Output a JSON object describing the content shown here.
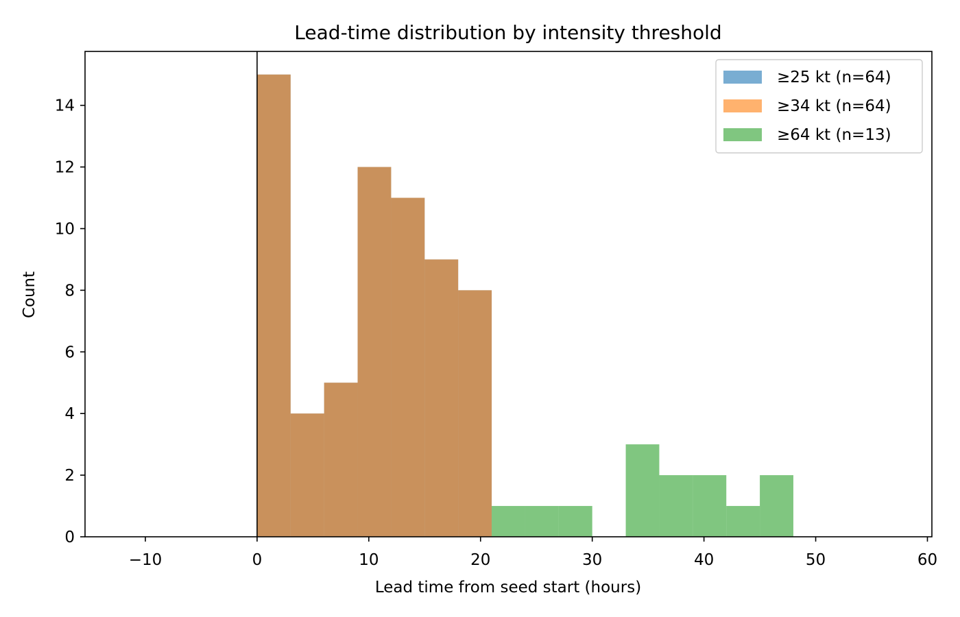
{
  "chart_data": {
    "type": "bar",
    "title": "Lead-time distribution by intensity threshold",
    "xlabel": "Lead time from seed start (hours)",
    "ylabel": "Count",
    "xlim": [
      -15.4,
      60.4
    ],
    "ylim": [
      0,
      15.75
    ],
    "x_ticks": [
      "−10",
      "0",
      "10",
      "20",
      "30",
      "40",
      "50",
      "60"
    ],
    "x_tick_values": [
      -10,
      0,
      10,
      20,
      30,
      40,
      50,
      60
    ],
    "y_ticks": [
      "0",
      "2",
      "4",
      "6",
      "8",
      "10",
      "12",
      "14"
    ],
    "y_tick_values": [
      0,
      2,
      4,
      6,
      8,
      10,
      12,
      14
    ],
    "bin_edges": [
      0,
      3,
      6,
      9,
      12,
      15,
      18,
      21,
      24,
      27,
      30,
      33,
      36,
      39,
      42,
      45,
      48
    ],
    "grid": false,
    "legend_position": "upper right",
    "reference_line_x": 0,
    "series": [
      {
        "name": "≥25 kt (n=64)",
        "color": "#1f77b4",
        "alpha": 0.6,
        "values": [
          15,
          4,
          5,
          12,
          11,
          9,
          8,
          0,
          0,
          0,
          0,
          0,
          0,
          0,
          0,
          0
        ]
      },
      {
        "name": "≥34 kt (n=64)",
        "color": "#ff7f0e",
        "alpha": 0.6,
        "values": [
          15,
          4,
          5,
          12,
          11,
          9,
          8,
          0,
          0,
          0,
          0,
          0,
          0,
          0,
          0,
          0
        ]
      },
      {
        "name": "≥64 kt (n=13)",
        "color": "#2ca02c",
        "alpha": 0.6,
        "values": [
          0,
          0,
          0,
          0,
          0,
          0,
          0,
          1,
          1,
          1,
          0,
          3,
          2,
          2,
          1,
          2
        ]
      }
    ]
  }
}
